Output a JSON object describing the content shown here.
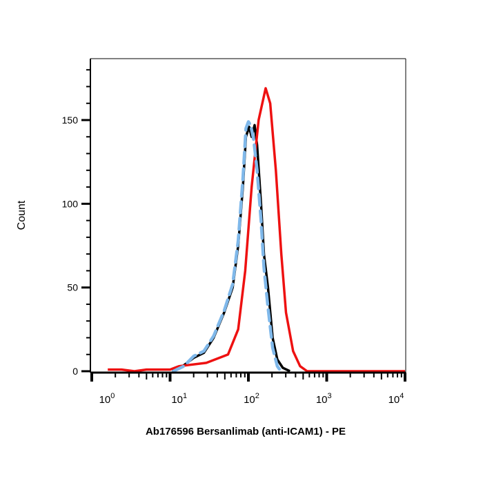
{
  "chart_data": {
    "type": "line",
    "title": "",
    "xlabel": "Ab176596 Bersanlimab (anti-ICAM1) - PE",
    "ylabel": "Count",
    "x_scale": "log",
    "xlim": [
      1,
      10000
    ],
    "ylim": [
      0,
      186
    ],
    "x_ticks": [
      {
        "base": "10",
        "exp": "0"
      },
      {
        "base": "10",
        "exp": "1"
      },
      {
        "base": "10",
        "exp": "2"
      },
      {
        "base": "10",
        "exp": "3"
      },
      {
        "base": "10",
        "exp": "4"
      }
    ],
    "y_ticks": [
      0,
      50,
      100,
      150
    ],
    "grid": false,
    "series": [
      {
        "color": "#000000",
        "style": "solid",
        "points": [
          [
            10.7,
            0
          ],
          [
            14.5,
            3
          ],
          [
            20,
            8
          ],
          [
            27,
            11
          ],
          [
            36,
            20
          ],
          [
            49,
            35
          ],
          [
            63,
            50
          ],
          [
            74,
            75
          ],
          [
            85,
            110
          ],
          [
            93,
            140
          ],
          [
            102,
            146
          ],
          [
            110,
            140
          ],
          [
            120,
            147
          ],
          [
            129,
            135
          ],
          [
            145,
            100
          ],
          [
            158,
            70
          ],
          [
            178,
            50
          ],
          [
            204,
            20
          ],
          [
            234,
            7
          ],
          [
            275,
            2
          ],
          [
            339,
            0
          ]
        ]
      },
      {
        "color": "#7fb8ea",
        "style": "dashed",
        "points": [
          [
            11,
            0
          ],
          [
            15,
            3
          ],
          [
            20,
            9
          ],
          [
            27,
            12
          ],
          [
            36,
            21
          ],
          [
            49,
            36
          ],
          [
            63,
            52
          ],
          [
            74,
            78
          ],
          [
            85,
            115
          ],
          [
            93,
            145
          ],
          [
            100,
            149
          ],
          [
            107,
            147
          ],
          [
            117,
            138
          ],
          [
            129,
            120
          ],
          [
            145,
            90
          ],
          [
            158,
            62
          ],
          [
            178,
            38
          ],
          [
            204,
            14
          ],
          [
            234,
            3
          ],
          [
            260,
            0
          ]
        ]
      },
      {
        "color": "#ee1111",
        "style": "solid",
        "points": [
          [
            1.6,
            1
          ],
          [
            2.4,
            1
          ],
          [
            3.5,
            0
          ],
          [
            5,
            1
          ],
          [
            10,
            1
          ],
          [
            13,
            3
          ],
          [
            29,
            5
          ],
          [
            55,
            10
          ],
          [
            74,
            25
          ],
          [
            91,
            60
          ],
          [
            110,
            110
          ],
          [
            135,
            150
          ],
          [
            166,
            169
          ],
          [
            190,
            160
          ],
          [
            224,
            120
          ],
          [
            263,
            70
          ],
          [
            302,
            35
          ],
          [
            372,
            12
          ],
          [
            457,
            3
          ],
          [
            562,
            0
          ],
          [
            10000,
            0
          ]
        ]
      }
    ]
  }
}
